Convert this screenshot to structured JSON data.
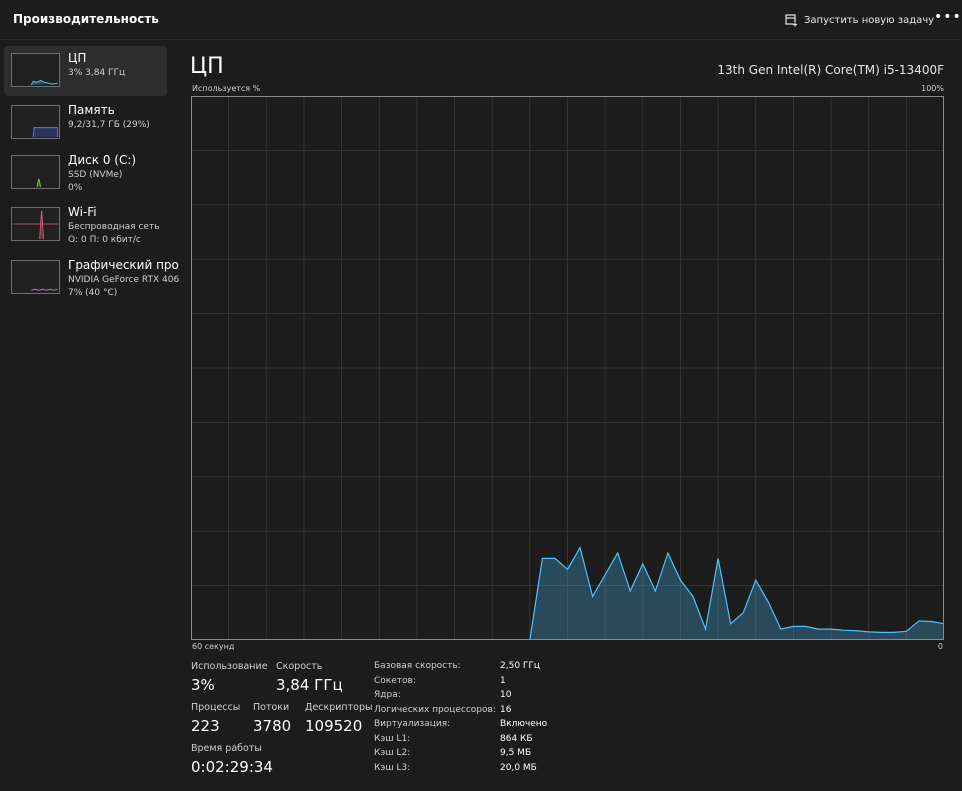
{
  "header": {
    "title": "Производительность",
    "run_task_label": "Запустить новую задачу",
    "more_label": "•••"
  },
  "sidebar": {
    "items": [
      {
        "title": "ЦП",
        "line1": "3% 3,84 ГГц",
        "line2": "",
        "color": "#4cc2ff",
        "active": true
      },
      {
        "title": "Память",
        "line1": "9,2/31,7 ГБ (29%)",
        "line2": "",
        "color": "#4c7dff"
      },
      {
        "title": "Диск 0 (C:)",
        "line1": "SSD (NVMe)",
        "line2": "0%",
        "color": "#7bc043"
      },
      {
        "title": "Wi-Fi",
        "line1": "Беспроводная сеть",
        "line2": "О: 0 П: 0 кбит/с",
        "color": "#e05b7a"
      },
      {
        "title": "Графический про",
        "line1": "NVIDIA GeForce RTX 406",
        "line2": "7% (40 °C)",
        "color": "#c86bd6"
      }
    ]
  },
  "main": {
    "title": "ЦП",
    "model": "13th Gen Intel(R) Core(TM) i5-13400F",
    "graph_label_left": "Используется %",
    "graph_label_right": "100%",
    "axis_left": "60 секунд",
    "axis_right": "0"
  },
  "stats": {
    "usage_label": "Использование",
    "usage_value": "3%",
    "speed_label": "Скорость",
    "speed_value": "3,84 ГГц",
    "processes_label": "Процессы",
    "processes_value": "223",
    "threads_label": "Потоки",
    "threads_value": "3780",
    "handles_label": "Дескрипторы",
    "handles_value": "109520",
    "uptime_label": "Время работы",
    "uptime_value": "0:02:29:34"
  },
  "specs": [
    {
      "key": "Базовая скорость:",
      "value": "2,50 ГГц"
    },
    {
      "key": "Сокетов:",
      "value": "1"
    },
    {
      "key": "Ядра:",
      "value": "10"
    },
    {
      "key": "Логических процессоров:",
      "value": "16"
    },
    {
      "key": "Виртуализация:",
      "value": "Включено"
    },
    {
      "key": "Кэш L1:",
      "value": "864 КБ"
    },
    {
      "key": "Кэш L2:",
      "value": "9,5 МБ"
    },
    {
      "key": "Кэш L3:",
      "value": "20,0 МБ"
    }
  ],
  "chart_data": {
    "type": "area",
    "xlim": [
      60,
      0
    ],
    "ylim": [
      0,
      100
    ],
    "grid": true,
    "color": "#4cc2ff",
    "x": [
      60,
      59,
      58,
      57,
      56,
      55,
      54,
      53,
      52,
      51,
      50,
      49,
      48,
      47,
      46,
      45,
      44,
      43,
      42,
      41,
      40,
      39,
      38,
      37,
      36,
      35,
      34,
      33,
      32,
      31,
      30,
      29,
      28,
      27,
      26,
      25,
      24,
      23,
      22,
      21,
      20,
      19,
      18,
      17,
      16,
      15,
      14,
      13,
      12,
      11,
      10,
      9,
      8,
      7,
      6,
      5,
      4,
      3,
      2,
      1,
      0
    ],
    "values": [
      0,
      0,
      0,
      0,
      0,
      0,
      0,
      0,
      0,
      0,
      0,
      0,
      0,
      0,
      0,
      0,
      0,
      0,
      0,
      0,
      0,
      0,
      0,
      0,
      0,
      0,
      0,
      0,
      15,
      15,
      13,
      17,
      8,
      12,
      16,
      9,
      14,
      9,
      16,
      11,
      8,
      2,
      15,
      3,
      5,
      11,
      7,
      2,
      2.5,
      2.5,
      2,
      2,
      1.8,
      1.7,
      1.5,
      1.4,
      1.4,
      1.6,
      3.5,
      3.4,
      3
    ]
  }
}
